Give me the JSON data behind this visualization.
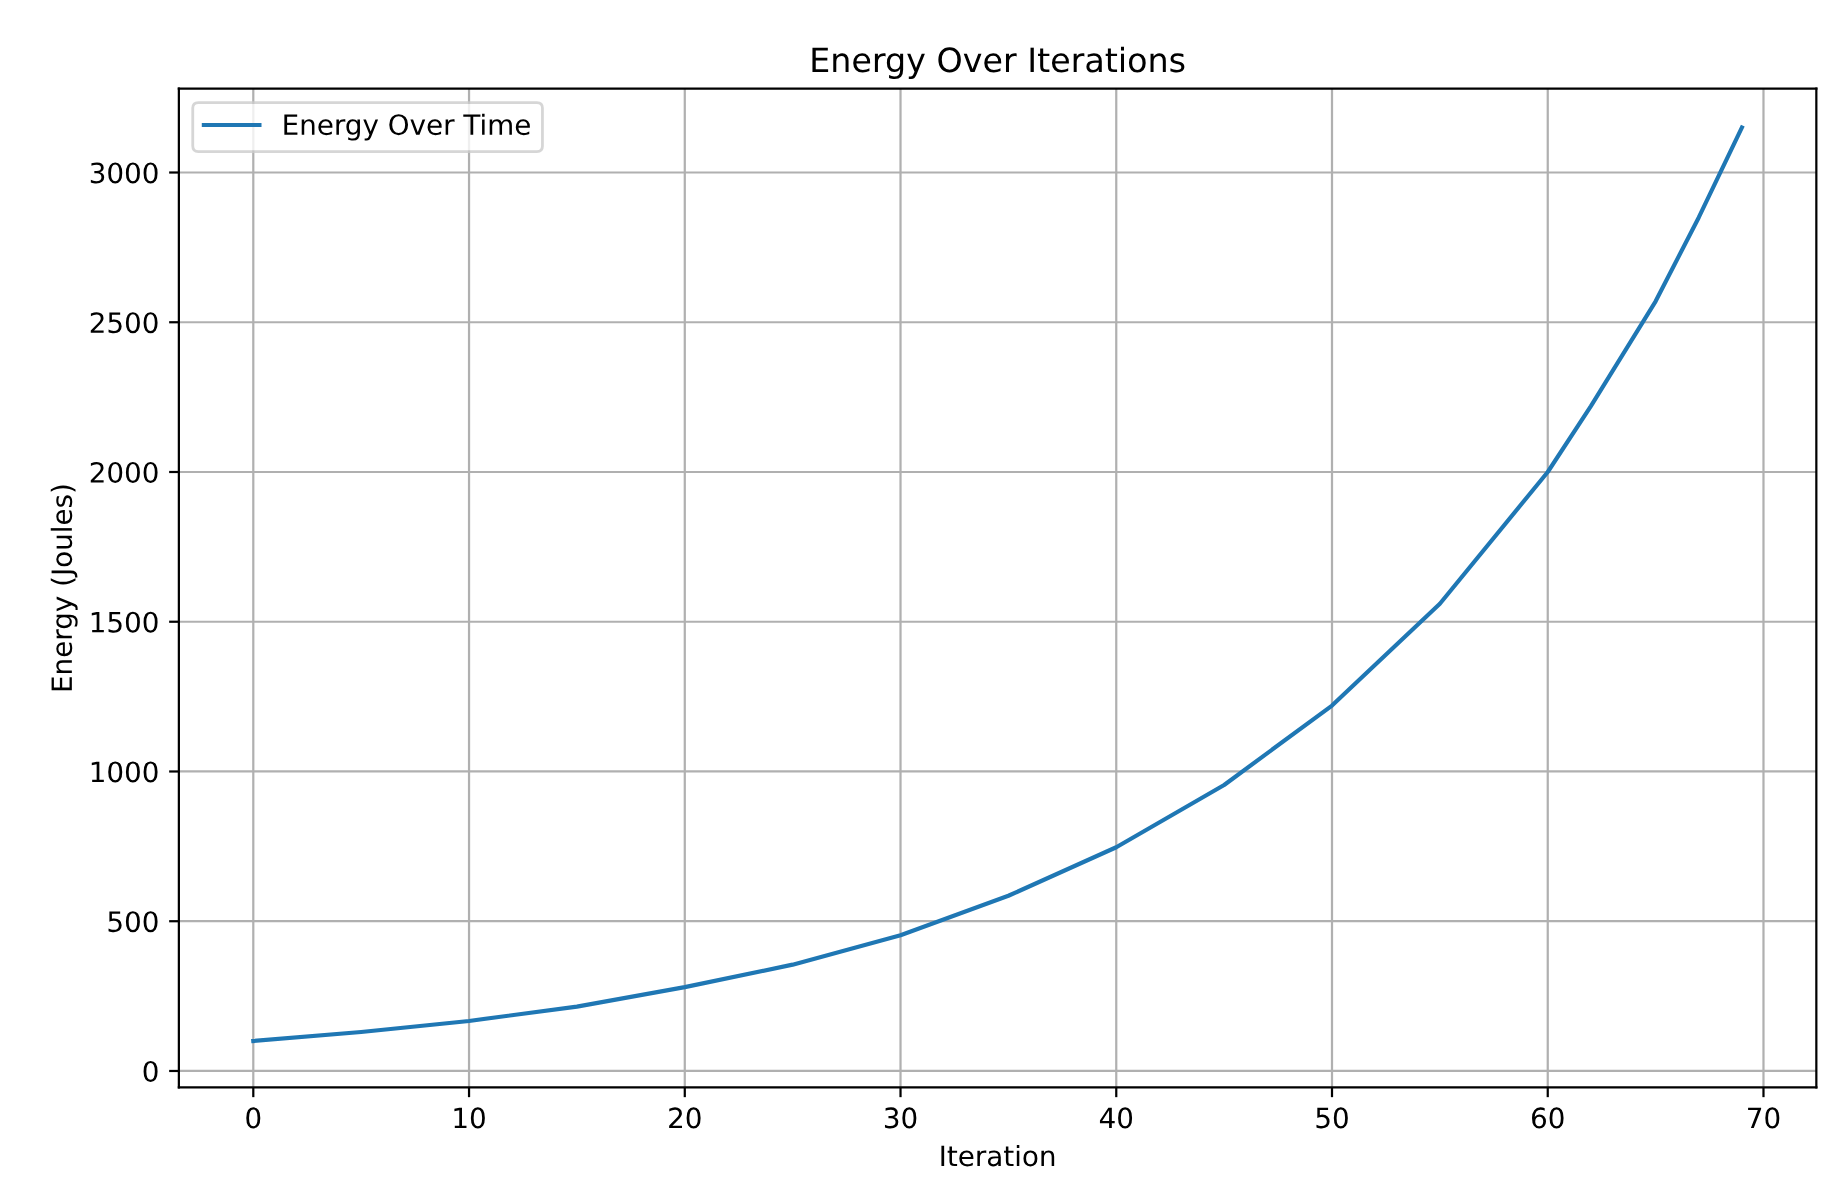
{
  "chart_data": {
    "type": "line",
    "title": "Energy Over Iterations",
    "xlabel": "Iteration",
    "ylabel": "Energy (Joules)",
    "x": [
      0,
      5,
      10,
      15,
      20,
      25,
      30,
      35,
      40,
      45,
      50,
      55,
      60,
      62,
      65,
      67,
      69
    ],
    "series": [
      {
        "name": "Energy Over Time",
        "color": "#1f77b4",
        "values": [
          100,
          130,
          167,
          215,
          280,
          355,
          453,
          585,
          747,
          955,
          1220,
          1560,
          2000,
          2220,
          2570,
          2850,
          3150
        ]
      }
    ],
    "xlim": [
      -3.45,
      72.45
    ],
    "ylim": [
      -55,
      3280
    ],
    "xticks": [
      0,
      10,
      20,
      30,
      40,
      50,
      60,
      70
    ],
    "yticks": [
      0,
      500,
      1000,
      1500,
      2000,
      2500,
      3000
    ],
    "grid": true,
    "legend": "top left",
    "line_style": "solid",
    "marker": "none"
  }
}
